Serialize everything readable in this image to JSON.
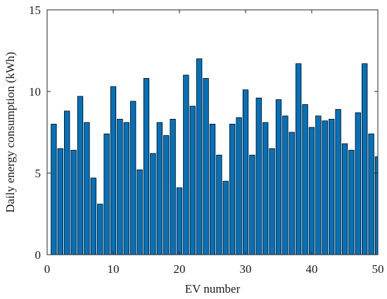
{
  "chart_data": {
    "type": "bar",
    "title": "",
    "xlabel": "EV number",
    "ylabel": "Daily energy consumption (kWh)",
    "xlim": [
      0,
      50
    ],
    "ylim": [
      0,
      15
    ],
    "xticks": [
      0,
      10,
      20,
      30,
      40,
      50
    ],
    "yticks": [
      0,
      5,
      10,
      15
    ],
    "grid": false,
    "colors": {
      "bar_fill": "#0072bd",
      "bar_stroke": "#000000",
      "axis": "#262626"
    },
    "x": [
      1,
      2,
      3,
      4,
      5,
      6,
      7,
      8,
      9,
      10,
      11,
      12,
      13,
      14,
      15,
      16,
      17,
      18,
      19,
      20,
      21,
      22,
      23,
      24,
      25,
      26,
      27,
      28,
      29,
      30,
      31,
      32,
      33,
      34,
      35,
      36,
      37,
      38,
      39,
      40,
      41,
      42,
      43,
      44,
      45,
      46,
      47,
      48,
      49,
      50
    ],
    "values": [
      8.0,
      6.5,
      8.8,
      6.4,
      9.7,
      8.1,
      4.7,
      3.1,
      7.4,
      10.3,
      8.3,
      8.1,
      9.4,
      5.2,
      10.8,
      6.2,
      8.1,
      7.3,
      8.3,
      4.1,
      11.0,
      9.1,
      12.0,
      10.8,
      8.0,
      6.1,
      4.5,
      8.0,
      8.4,
      10.1,
      6.1,
      9.6,
      8.1,
      6.5,
      9.5,
      8.5,
      7.5,
      11.7,
      9.2,
      7.8,
      8.5,
      8.2,
      8.3,
      8.9,
      6.8,
      6.4,
      8.7,
      11.7,
      7.4,
      6.0
    ]
  }
}
